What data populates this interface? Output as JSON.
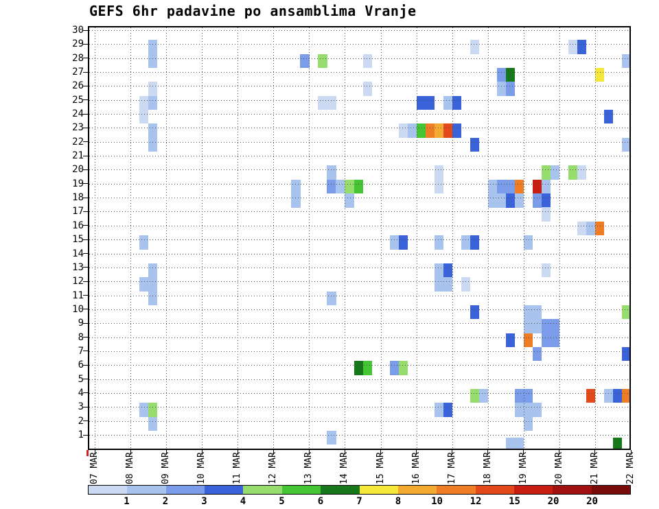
{
  "title": "GEFS 6hr padavine po ansamblima Vranje",
  "chart_data": {
    "type": "heatmap",
    "title": "GEFS 6hr padavine po ansamblima Vranje",
    "grid": "dotted",
    "axis_color": "#000000",
    "x_axis": {
      "labels": [
        "07 MAR",
        "08 MAR",
        "09 MAR",
        "10 MAR",
        "11 MAR",
        "12 MAR",
        "13 MAR",
        "14 MAR",
        "15 MAR",
        "16 MAR",
        "17 MAR",
        "18 MAR",
        "19 MAR",
        "20 MAR",
        "21 MAR",
        "22 MAR"
      ]
    },
    "y_axis": {
      "labels": [
        "1",
        "2",
        "3",
        "4",
        "5",
        "6",
        "7",
        "8",
        "9",
        "10",
        "11",
        "12",
        "13",
        "14",
        "15",
        "16",
        "17",
        "18",
        "19",
        "20",
        "21",
        "22",
        "23",
        "24",
        "25",
        "26",
        "27",
        "28",
        "29",
        "30"
      ],
      "range": [
        1,
        30
      ]
    },
    "legend": {
      "tick_labels": [
        "1",
        "2",
        "3",
        "4",
        "5",
        "6",
        "7",
        "8",
        "10",
        "12",
        "15",
        "20",
        "20"
      ],
      "colors": [
        "#ccd9f3",
        "#a9c3ef",
        "#7a9ce9",
        "#3a62d9",
        "#97dd6d",
        "#45c434",
        "#17771b",
        "#f6e83b",
        "#f4a930",
        "#ef7d25",
        "#e4491c",
        "#c81e12",
        "#a01010",
        "#7a0b0b"
      ]
    },
    "cell_encoding": {
      "d": "days after 07 MAR 00h, 0.25 = 6 hours (cell left edge)",
      "m": "ensemble member row (y axis)",
      "c": "index into legend.colors"
    },
    "cells": [
      [
        1.5,
        29,
        1
      ],
      [
        10.5,
        29,
        0
      ],
      [
        13.25,
        29,
        0
      ],
      [
        13.5,
        29,
        3
      ],
      [
        1.5,
        28,
        1
      ],
      [
        5.75,
        28,
        2
      ],
      [
        6.25,
        28,
        4
      ],
      [
        7.5,
        28,
        0
      ],
      [
        14.75,
        28,
        1
      ],
      [
        11.25,
        27,
        2
      ],
      [
        11.5,
        27,
        6
      ],
      [
        14.0,
        27,
        7
      ],
      [
        1.5,
        26,
        0
      ],
      [
        7.5,
        26,
        0
      ],
      [
        11.25,
        26,
        1
      ],
      [
        11.5,
        26,
        2
      ],
      [
        1.25,
        25,
        0
      ],
      [
        1.5,
        25,
        1
      ],
      [
        6.25,
        25,
        0
      ],
      [
        6.5,
        25,
        0
      ],
      [
        9.0,
        25,
        3
      ],
      [
        9.25,
        25,
        3
      ],
      [
        9.75,
        25,
        1
      ],
      [
        10.0,
        25,
        3
      ],
      [
        1.25,
        24,
        0
      ],
      [
        14.25,
        24,
        3
      ],
      [
        1.5,
        23,
        1
      ],
      [
        8.5,
        23,
        0
      ],
      [
        8.75,
        23,
        1
      ],
      [
        9.0,
        23,
        5
      ],
      [
        9.25,
        23,
        9
      ],
      [
        9.5,
        23,
        8
      ],
      [
        9.75,
        23,
        10
      ],
      [
        10.0,
        23,
        3
      ],
      [
        1.5,
        22,
        1
      ],
      [
        10.5,
        22,
        3
      ],
      [
        14.75,
        22,
        1
      ],
      [
        6.5,
        20,
        1
      ],
      [
        9.5,
        20,
        0
      ],
      [
        12.5,
        20,
        4
      ],
      [
        12.75,
        20,
        1
      ],
      [
        13.25,
        20,
        4
      ],
      [
        13.5,
        20,
        0
      ],
      [
        5.5,
        19,
        1
      ],
      [
        6.5,
        19,
        2
      ],
      [
        6.75,
        19,
        1
      ],
      [
        7.0,
        19,
        4
      ],
      [
        7.25,
        19,
        5
      ],
      [
        9.5,
        19,
        0
      ],
      [
        11.0,
        19,
        1
      ],
      [
        11.25,
        19,
        2
      ],
      [
        11.5,
        19,
        2
      ],
      [
        11.75,
        19,
        9
      ],
      [
        12.25,
        19,
        11
      ],
      [
        12.5,
        19,
        1
      ],
      [
        5.5,
        18,
        1
      ],
      [
        7.0,
        18,
        1
      ],
      [
        11.0,
        18,
        1
      ],
      [
        11.25,
        18,
        1
      ],
      [
        11.5,
        18,
        3
      ],
      [
        11.75,
        18,
        1
      ],
      [
        12.25,
        18,
        2
      ],
      [
        12.5,
        18,
        3
      ],
      [
        12.5,
        17,
        0
      ],
      [
        13.5,
        16,
        0
      ],
      [
        13.75,
        16,
        1
      ],
      [
        14.0,
        16,
        9
      ],
      [
        1.25,
        15,
        1
      ],
      [
        8.25,
        15,
        1
      ],
      [
        8.5,
        15,
        3
      ],
      [
        9.5,
        15,
        1
      ],
      [
        10.25,
        15,
        1
      ],
      [
        10.5,
        15,
        3
      ],
      [
        12.0,
        15,
        1
      ],
      [
        1.5,
        13,
        1
      ],
      [
        9.5,
        13,
        1
      ],
      [
        9.75,
        13,
        3
      ],
      [
        12.5,
        13,
        0
      ],
      [
        1.25,
        12,
        1
      ],
      [
        1.5,
        12,
        1
      ],
      [
        9.5,
        12,
        1
      ],
      [
        9.75,
        12,
        1
      ],
      [
        10.25,
        12,
        0
      ],
      [
        1.5,
        11,
        1
      ],
      [
        6.5,
        11,
        1
      ],
      [
        10.5,
        10,
        3
      ],
      [
        12.0,
        10,
        1
      ],
      [
        12.25,
        10,
        1
      ],
      [
        14.75,
        10,
        4
      ],
      [
        12.0,
        9,
        1
      ],
      [
        12.25,
        9,
        1
      ],
      [
        12.5,
        9,
        2
      ],
      [
        12.75,
        9,
        2
      ],
      [
        11.5,
        8,
        3
      ],
      [
        12.0,
        8,
        9
      ],
      [
        12.5,
        8,
        2
      ],
      [
        12.75,
        8,
        2
      ],
      [
        12.25,
        7,
        2
      ],
      [
        14.75,
        7,
        3
      ],
      [
        7.25,
        6,
        6
      ],
      [
        7.5,
        6,
        5
      ],
      [
        8.25,
        6,
        2
      ],
      [
        8.5,
        6,
        4
      ],
      [
        10.5,
        4,
        4
      ],
      [
        10.75,
        4,
        1
      ],
      [
        11.75,
        4,
        2
      ],
      [
        12.0,
        4,
        2
      ],
      [
        13.75,
        4,
        10
      ],
      [
        14.25,
        4,
        1
      ],
      [
        14.5,
        4,
        3
      ],
      [
        14.75,
        4,
        9
      ],
      [
        1.25,
        3,
        1
      ],
      [
        1.5,
        3,
        4
      ],
      [
        9.5,
        3,
        1
      ],
      [
        9.75,
        3,
        3
      ],
      [
        11.75,
        3,
        1
      ],
      [
        12.0,
        3,
        1
      ],
      [
        12.25,
        3,
        1
      ],
      [
        1.5,
        2,
        1
      ],
      [
        12.0,
        2,
        1
      ],
      [
        6.5,
        1,
        1
      ],
      [
        11.5,
        0.5,
        1
      ],
      [
        11.75,
        0.5,
        1
      ],
      [
        14.5,
        0.5,
        6
      ]
    ]
  }
}
